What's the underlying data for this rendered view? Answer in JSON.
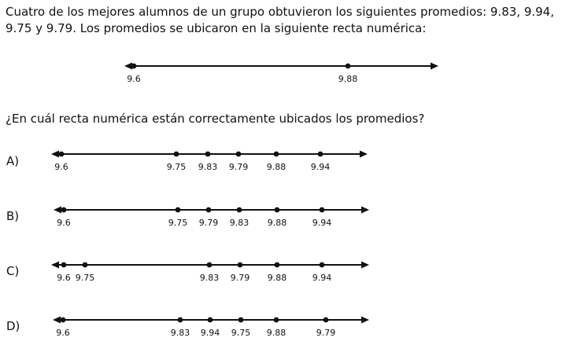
{
  "intro": "Cuatro de los mejores alumnos de un grupo obtuvieron los siguientes promedios: 9.83, 9.94, 9.75 y 9.79. Los promedios se ubicaron en la siguiente recta numérica:",
  "reference_line": {
    "labels": [
      "9.6",
      "9.88"
    ]
  },
  "question": "¿En cuál recta numérica están correctamente ubicados los promedios?",
  "options": [
    {
      "letter": "A)",
      "labels": [
        "9.6",
        "9.75",
        "9.83",
        "9.79",
        "9.88",
        "9.94"
      ]
    },
    {
      "letter": "B)",
      "labels": [
        "9.6",
        "9.75",
        "9.79",
        "9.83",
        "9.88",
        "9.94"
      ]
    },
    {
      "letter": "C)",
      "labels": [
        "9.6",
        "9.75",
        "9.83",
        "9.79",
        "9.88",
        "9.94"
      ]
    },
    {
      "letter": "D)",
      "labels": [
        "9.6",
        "9.83",
        "9.94",
        "9.75",
        "9.88",
        "9.79"
      ]
    }
  ]
}
